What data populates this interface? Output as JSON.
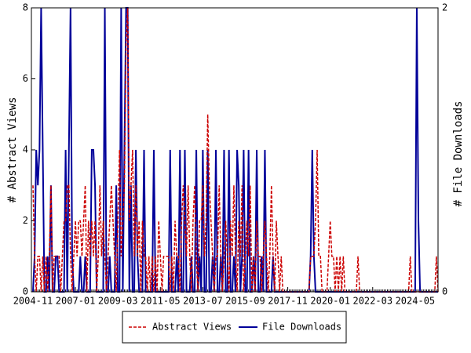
{
  "chart_data": {
    "type": "line",
    "y_label": "# Abstract Views",
    "y2_label": "# File Downloads",
    "categories": [
      "2004-11",
      null,
      null,
      null,
      null,
      null,
      null,
      null,
      null,
      null,
      null,
      null,
      null,
      null,
      null,
      null,
      null,
      null,
      null,
      null,
      null,
      null,
      null,
      null,
      null,
      null,
      "2007-01",
      null,
      null,
      null,
      null,
      null,
      null,
      null,
      null,
      null,
      null,
      null,
      null,
      null,
      null,
      null,
      null,
      null,
      null,
      null,
      null,
      null,
      null,
      null,
      null,
      null,
      "2009-03",
      null,
      null,
      null,
      null,
      null,
      null,
      null,
      null,
      null,
      null,
      null,
      null,
      null,
      null,
      null,
      null,
      null,
      null,
      null,
      null,
      null,
      null,
      null,
      null,
      null,
      "2011-05",
      null,
      null,
      null,
      null,
      null,
      null,
      null,
      null,
      null,
      null,
      null,
      null,
      null,
      null,
      null,
      null,
      null,
      null,
      null,
      null,
      null,
      null,
      null,
      null,
      null,
      "2013-07",
      null,
      null,
      null,
      null,
      null,
      null,
      null,
      null,
      null,
      null,
      null,
      null,
      null,
      null,
      null,
      null,
      null,
      null,
      null,
      null,
      null,
      null,
      null,
      null,
      null,
      "2015-09",
      null,
      null,
      null,
      null,
      null,
      null,
      null,
      null,
      null,
      null,
      null,
      null,
      null,
      null,
      null,
      null,
      null,
      null,
      null,
      null,
      null,
      null,
      null,
      null,
      null,
      "2017-11",
      null,
      null,
      null,
      null,
      null,
      null,
      null,
      null,
      null,
      null,
      null,
      null,
      null,
      null,
      null,
      null,
      null,
      null,
      null,
      null,
      null,
      null,
      null,
      null,
      null,
      "2020-01",
      null,
      null,
      null,
      null,
      null,
      null,
      null,
      null,
      null,
      null,
      null,
      null,
      null,
      null,
      null,
      null,
      null,
      null,
      null,
      null,
      null,
      null,
      null,
      null,
      null,
      "2022-03",
      null,
      null,
      null,
      null,
      null,
      null,
      null,
      null,
      null,
      null,
      null,
      null,
      null,
      null,
      null,
      null,
      null,
      null,
      null,
      null,
      null,
      null,
      null,
      null,
      null,
      "2024-05",
      null,
      null,
      null,
      null,
      null,
      null,
      null,
      null,
      null,
      null,
      null,
      null,
      null,
      null
    ],
    "series": [
      {
        "name": "Abstract Views",
        "color": "#cc0000",
        "dash": true,
        "values": [
          3,
          1,
          0,
          1,
          1,
          0,
          1,
          0,
          1,
          0,
          1,
          3,
          0,
          1,
          1,
          1,
          1,
          0,
          1,
          2,
          2,
          3,
          3,
          1,
          0,
          1,
          2,
          1,
          2,
          2,
          1,
          2,
          3,
          0,
          2,
          1,
          2,
          1,
          2,
          0,
          1,
          3,
          1,
          2,
          1,
          0,
          1,
          2,
          3,
          2,
          1,
          0,
          2,
          4,
          1,
          2,
          3,
          7,
          8,
          2,
          3,
          4,
          1,
          3,
          1,
          2,
          0,
          2,
          1,
          1,
          0,
          1,
          0,
          1,
          0,
          1,
          0,
          2,
          1,
          0,
          1,
          1,
          1,
          1,
          0,
          1,
          0,
          2,
          1,
          1,
          0,
          2,
          3,
          2,
          1,
          3,
          1,
          0,
          2,
          3,
          1,
          0,
          2,
          2,
          3,
          1,
          2,
          5,
          3,
          2,
          1,
          0,
          1,
          1,
          3,
          1,
          0,
          1,
          2,
          1,
          0,
          2,
          1,
          3,
          1,
          0,
          2,
          1,
          3,
          0,
          1,
          2,
          1,
          3,
          0,
          1,
          0,
          2,
          1,
          1,
          0,
          1,
          2,
          1,
          0,
          1,
          3,
          1,
          0,
          2,
          1,
          0,
          1,
          0,
          0,
          0,
          0,
          0,
          0,
          0,
          0,
          0,
          0,
          0,
          0,
          0,
          0,
          0,
          0,
          0,
          1,
          1,
          1,
          2,
          4,
          1,
          1,
          0,
          0,
          0,
          0,
          1,
          2,
          1,
          1,
          0,
          1,
          0,
          1,
          0,
          1,
          0,
          0,
          0,
          0,
          0,
          0,
          0,
          0,
          1,
          0,
          0,
          0,
          0,
          0,
          0,
          0,
          0,
          0,
          0,
          0,
          0,
          0,
          0,
          0,
          0,
          0,
          0,
          0,
          0,
          0,
          0,
          0,
          0,
          0,
          0,
          0,
          0,
          0,
          0,
          0,
          1,
          0,
          0,
          0,
          0,
          0,
          0,
          0,
          0,
          0,
          0,
          0,
          0,
          0,
          0,
          0,
          1,
          0
        ]
      },
      {
        "name": "File Downloads",
        "color": "#000099",
        "axis": "y2",
        "values": [
          0,
          0.25,
          1,
          0.75,
          1,
          2,
          1,
          0,
          0,
          0.25,
          0,
          0.75,
          0,
          0,
          0.25,
          0.25,
          0,
          0,
          0,
          0,
          1,
          0,
          1,
          2,
          0.25,
          0,
          0,
          0,
          0,
          0.25,
          0,
          0,
          0.25,
          0,
          0,
          0,
          1,
          1,
          0.75,
          0,
          0,
          0,
          0,
          0,
          2,
          0,
          0,
          0.25,
          0,
          0,
          0,
          0.75,
          0,
          0,
          2,
          0,
          1,
          2,
          2,
          0,
          0.75,
          0,
          0,
          1,
          0.25,
          0,
          0,
          0,
          1,
          0,
          0,
          0,
          0,
          0,
          1,
          0,
          0,
          0,
          0,
          0,
          0,
          0,
          0,
          0,
          1,
          0,
          0,
          0,
          0.25,
          0,
          1,
          0,
          0,
          1,
          0,
          0,
          0,
          0.25,
          0,
          0,
          1,
          0,
          0.25,
          0,
          1,
          0,
          0,
          1,
          0,
          0,
          0.25,
          0,
          1,
          0,
          0,
          0.25,
          0,
          1,
          0,
          0,
          1,
          0,
          0,
          0.25,
          0,
          1,
          0.75,
          0,
          0.25,
          1,
          0,
          0,
          1,
          0,
          0,
          0.25,
          0,
          1,
          0,
          0,
          0.25,
          0,
          1,
          0,
          0,
          0,
          0,
          0.25,
          0,
          0,
          0,
          0,
          0,
          0,
          0,
          0,
          0,
          0,
          0,
          0,
          0,
          0,
          0,
          0,
          0,
          0,
          0,
          0,
          0,
          0,
          0.25,
          1,
          0.25,
          0,
          0,
          0,
          0,
          0,
          0,
          0,
          0,
          0,
          0,
          0,
          0,
          0,
          0,
          0,
          0,
          0,
          0,
          0,
          0,
          0,
          0,
          0,
          0,
          0,
          0,
          0,
          0,
          0,
          0,
          0,
          0,
          0,
          0,
          0,
          0,
          0,
          0,
          0,
          0,
          0,
          0,
          0,
          0,
          0,
          0,
          0,
          0,
          0,
          0,
          0,
          0,
          0,
          0,
          0,
          0,
          0,
          0,
          0,
          0,
          0,
          0,
          2,
          0.5,
          0,
          0,
          0,
          0,
          0,
          0,
          0,
          0,
          0,
          0,
          0,
          0
        ]
      }
    ],
    "ylim": [
      0,
      8
    ],
    "yticks": [
      0,
      2,
      4,
      6,
      8
    ],
    "y2lim": [
      0,
      2
    ],
    "y2ticks": [
      0,
      2
    ]
  }
}
